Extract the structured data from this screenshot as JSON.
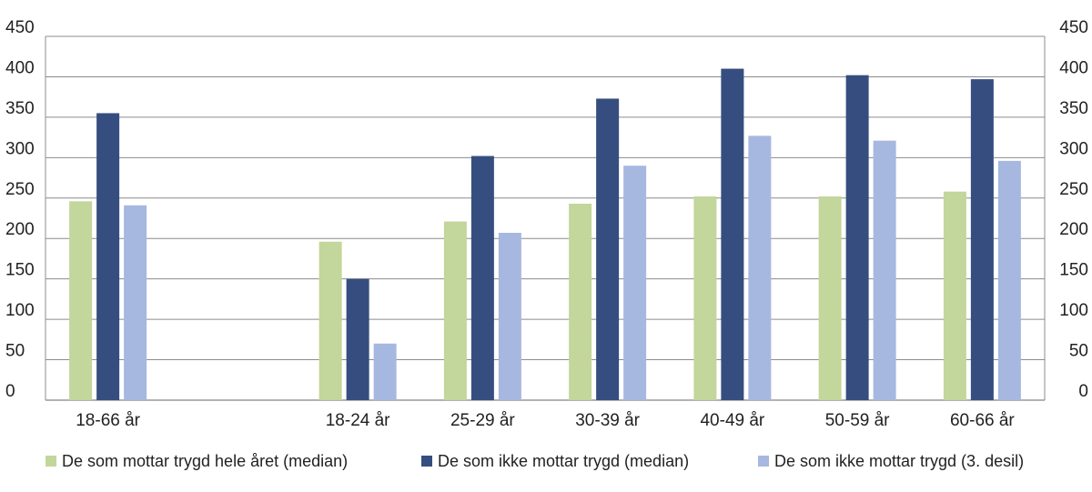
{
  "chart_data": {
    "type": "bar",
    "categories": [
      "18-66 år",
      "",
      "18-24 år",
      "25-29 år",
      "30-39 år",
      "40-49 år",
      "50-59 år",
      "60-66 år"
    ],
    "series": [
      {
        "name": "De som mottar trygd hele året (median)",
        "color": "#c3d69b",
        "values": [
          246,
          null,
          196,
          221,
          243,
          252,
          252,
          258
        ]
      },
      {
        "name": "De som ikke mottar trygd (median)",
        "color": "#354e7f",
        "values": [
          355,
          null,
          150,
          302,
          373,
          410,
          402,
          397
        ]
      },
      {
        "name": "De som ikke mottar trygd (3. desil)",
        "color": "#a6b8e0",
        "values": [
          241,
          null,
          70,
          207,
          290,
          327,
          321,
          296
        ]
      }
    ],
    "yticks": [
      0,
      50,
      100,
      150,
      200,
      250,
      300,
      350,
      400,
      450
    ],
    "ylim": [
      0,
      450
    ],
    "secondary_yaxis": true,
    "grid": true,
    "legend_position": "bottom"
  }
}
